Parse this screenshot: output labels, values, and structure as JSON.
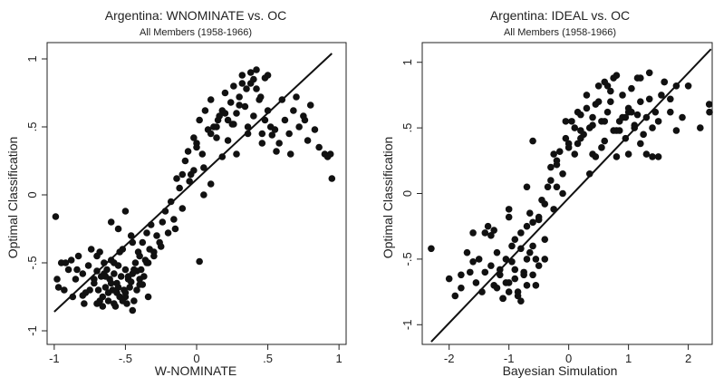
{
  "chart_data": [
    {
      "type": "scatter",
      "title": "Argentina: WNOMINATE vs. OC",
      "subtitle": "All Members (1958-1966)",
      "xlabel": "W-NOMINATE",
      "ylabel": "Optimal Classification",
      "xlim": [
        -1.05,
        1.05
      ],
      "ylim": [
        -1.1,
        1.12
      ],
      "xticks": [
        -1,
        -0.5,
        0,
        0.5,
        1
      ],
      "xtick_labels": [
        "-1",
        "-.5",
        "0",
        ".5",
        "1"
      ],
      "yticks": [
        -1,
        -0.5,
        0,
        0.5,
        1
      ],
      "ytick_labels": [
        "-1",
        "-.5",
        "0",
        ".5",
        "1"
      ],
      "grid": false,
      "fit_line": {
        "x": [
          -1.0,
          0.95
        ],
        "y": [
          -0.86,
          1.04
        ]
      },
      "series": [
        {
          "x": [
            -0.98,
            -0.95,
            -0.93,
            -0.9,
            -0.88,
            -0.85,
            -0.83,
            -0.8,
            -0.78,
            -0.76,
            -0.74,
            -0.72,
            -0.7,
            -0.69,
            -0.68,
            -0.67,
            -0.66,
            -0.65,
            -0.64,
            -0.63,
            -0.62,
            -0.61,
            -0.6,
            -0.59,
            -0.58,
            -0.57,
            -0.56,
            -0.55,
            -0.54,
            -0.53,
            -0.52,
            -0.51,
            -0.5,
            -0.49,
            -0.48,
            -0.47,
            -0.46,
            -0.45,
            -0.44,
            -0.43,
            -0.42,
            -0.41,
            -0.4,
            -0.39,
            -0.38,
            -0.37,
            -0.36,
            -0.35,
            -0.34,
            -0.33,
            -0.32,
            -0.3,
            -0.28,
            -0.26,
            -0.24,
            -0.22,
            -0.2,
            -0.18,
            -0.16,
            -0.14,
            -0.12,
            -0.1,
            -0.08,
            -0.06,
            -0.04,
            -0.02,
            0.0,
            0.02,
            0.04,
            0.06,
            0.08,
            0.1,
            0.12,
            0.14,
            0.16,
            0.18,
            0.2,
            0.22,
            0.24,
            0.26,
            0.28,
            0.3,
            0.32,
            0.34,
            0.36,
            0.38,
            0.4,
            0.42,
            0.44,
            0.46,
            0.48,
            0.5,
            0.52,
            0.55,
            0.58,
            0.6,
            0.62,
            0.65,
            0.68,
            0.7,
            0.72,
            0.75,
            0.78,
            0.8,
            0.83,
            0.86,
            0.9,
            0.92,
            0.94,
            0.95,
            -0.62,
            -0.58,
            -0.55,
            -0.5,
            -0.45,
            -0.7,
            -0.75,
            -0.8,
            -0.66,
            -0.6,
            -0.56,
            -0.52,
            -0.48,
            -0.44,
            -0.4,
            -0.35,
            -0.3,
            -0.25,
            -0.15,
            -0.05,
            0.05,
            0.1,
            0.15,
            0.2,
            0.25,
            0.3,
            0.35,
            0.4,
            0.45,
            0.5,
            0.05,
            0.1,
            0.18,
            0.22,
            0.28,
            0.32,
            0.38,
            0.42,
            0.48,
            0.53,
            -0.02,
            0.0,
            -0.1,
            0.14,
            0.26,
            0.36,
            0.46,
            0.56,
            0.66,
            0.76,
            -0.5,
            -0.45,
            -0.4,
            -0.55,
            -0.6,
            -0.65,
            -0.7,
            -0.72,
            -0.68,
            -0.64,
            -0.58,
            -0.54,
            -0.5,
            -0.46,
            -0.42,
            -0.38,
            -0.34,
            -0.99,
            -0.97,
            -0.92,
            -0.87,
            -0.84,
            -0.79,
            0.02
          ],
          "y": [
            -0.62,
            -0.5,
            -0.7,
            -0.55,
            -0.48,
            -0.62,
            -0.45,
            -0.58,
            -0.72,
            -0.52,
            -0.4,
            -0.65,
            -0.56,
            -0.7,
            -0.42,
            -0.6,
            -0.75,
            -0.5,
            -0.68,
            -0.55,
            -0.78,
            -0.62,
            -0.48,
            -0.7,
            -0.58,
            -0.82,
            -0.65,
            -0.52,
            -0.75,
            -0.6,
            -0.4,
            -0.7,
            -0.55,
            -0.8,
            -0.62,
            -0.68,
            -0.3,
            -0.58,
            -0.78,
            -0.5,
            -0.7,
            -0.42,
            -0.62,
            -0.55,
            -0.35,
            -0.6,
            -0.48,
            -0.28,
            -0.5,
            -0.4,
            -0.22,
            -0.45,
            -0.3,
            -0.35,
            -0.2,
            -0.12,
            -0.28,
            -0.05,
            -0.18,
            0.12,
            0.05,
            -0.1,
            0.25,
            0.32,
            0.15,
            0.42,
            0.38,
            0.55,
            0.3,
            0.62,
            0.48,
            0.7,
            0.5,
            0.42,
            0.58,
            0.62,
            0.75,
            0.55,
            0.68,
            0.8,
            0.6,
            0.72,
            0.88,
            0.65,
            0.5,
            0.82,
            0.58,
            0.92,
            0.7,
            0.45,
            0.55,
            0.62,
            0.5,
            0.48,
            0.38,
            0.7,
            0.55,
            0.45,
            0.62,
            0.72,
            0.5,
            0.58,
            0.4,
            0.66,
            0.48,
            0.35,
            0.3,
            0.28,
            0.3,
            0.12,
            -0.72,
            -0.8,
            -0.68,
            -0.75,
            -0.85,
            -0.8,
            -0.7,
            -0.74,
            -0.82,
            -0.65,
            -0.72,
            -0.78,
            -0.6,
            -0.55,
            -0.66,
            -0.5,
            -0.42,
            -0.38,
            -0.25,
            0.1,
            0.2,
            0.45,
            0.55,
            0.6,
            0.52,
            0.66,
            0.78,
            0.85,
            0.72,
            0.88,
            0.0,
            0.08,
            0.28,
            0.4,
            0.3,
            0.82,
            0.9,
            0.78,
            0.86,
            0.44,
            0.18,
            0.35,
            0.15,
            0.5,
            0.52,
            0.45,
            0.38,
            0.32,
            0.3,
            0.55,
            -0.12,
            -0.35,
            -0.45,
            -0.25,
            -0.2,
            -0.58,
            -0.45,
            -0.62,
            -0.78,
            -0.6,
            -0.5,
            -0.42,
            -0.72,
            -0.64,
            -0.56,
            -0.66,
            -0.75,
            -0.16,
            -0.68,
            -0.5,
            -0.75,
            -0.55,
            -0.8,
            -0.49
          ]
        }
      ]
    },
    {
      "type": "scatter",
      "title": "Argentina: IDEAL vs. OC",
      "subtitle": "All Members (1958-1966)",
      "xlabel": "Bayesian Simulation",
      "ylabel": "Optimal Classification",
      "xlim": [
        -2.45,
        2.4
      ],
      "ylim": [
        -1.15,
        1.15
      ],
      "xticks": [
        -2,
        -1,
        0,
        1,
        2
      ],
      "xtick_labels": [
        "-2",
        "-1",
        "0",
        "1",
        "2"
      ],
      "yticks": [
        -1,
        -0.5,
        0,
        0.5,
        1
      ],
      "ytick_labels": [
        "-1",
        "-.5",
        "0",
        ".5",
        "1"
      ],
      "grid": false,
      "fit_line": {
        "x": [
          -2.3,
          2.38
        ],
        "y": [
          -1.13,
          1.1
        ]
      },
      "series": [
        {
          "x": [
            -2.3,
            -2.0,
            -1.9,
            -1.8,
            -1.7,
            -1.65,
            -1.6,
            -1.55,
            -1.5,
            -1.45,
            -1.4,
            -1.35,
            -1.3,
            -1.25,
            -1.2,
            -1.15,
            -1.1,
            -1.05,
            -1.0,
            -0.95,
            -0.9,
            -0.85,
            -0.8,
            -0.75,
            -0.7,
            -0.65,
            -0.6,
            -0.55,
            -0.5,
            -0.45,
            -0.4,
            -0.35,
            -0.3,
            -0.25,
            -0.2,
            -0.15,
            -0.1,
            -0.05,
            0.0,
            0.05,
            0.1,
            0.15,
            0.2,
            0.25,
            0.3,
            0.35,
            0.4,
            0.45,
            0.5,
            0.55,
            0.6,
            0.65,
            0.7,
            0.75,
            0.8,
            0.85,
            0.9,
            0.95,
            1.0,
            1.05,
            1.1,
            1.15,
            1.2,
            1.25,
            1.3,
            1.35,
            1.4,
            1.45,
            1.5,
            1.55,
            1.6,
            1.7,
            1.8,
            1.9,
            2.0,
            2.2,
            2.35,
            2.38,
            -1.2,
            -1.1,
            -1.0,
            -0.9,
            -0.8,
            -0.7,
            -0.6,
            -0.5,
            -1.15,
            -1.05,
            -0.95,
            -0.85,
            -0.75,
            -0.65,
            -0.55,
            -1.25,
            -0.9,
            -0.8,
            -0.7,
            -1.0,
            -0.6,
            -0.4,
            -0.2,
            0.0,
            0.2,
            0.4,
            0.6,
            0.8,
            1.0,
            1.2,
            1.4,
            0.3,
            0.5,
            0.7,
            0.9,
            1.1,
            1.3,
            0.45,
            0.65,
            0.85,
            1.05,
            0.55,
            0.75,
            0.95,
            -1.4,
            -1.6,
            -1.8,
            -1.3,
            -1.0,
            -0.7,
            -0.5,
            -0.3,
            -0.1,
            0.1,
            -0.4,
            -0.6,
            -0.2,
            0.6,
            0.8,
            1.0,
            1.2,
            1.5,
            1.7,
            0.2,
            0.4,
            0.35,
            0.15,
            -0.05,
            -0.25,
            1.6,
            1.8,
            1.35,
            1.15
          ],
          "y": [
            -0.42,
            -0.65,
            -0.78,
            -0.72,
            -0.45,
            -0.6,
            -0.3,
            -0.68,
            -0.5,
            -0.75,
            -0.6,
            -0.25,
            -0.55,
            -0.7,
            -0.45,
            -0.62,
            -0.8,
            -0.5,
            -0.68,
            -0.4,
            -0.58,
            -0.75,
            -0.3,
            -0.62,
            -0.5,
            -0.15,
            -0.4,
            -0.7,
            -0.2,
            -0.05,
            -0.35,
            0.05,
            0.1,
            -0.12,
            0.25,
            0.32,
            0.0,
            0.42,
            0.38,
            0.55,
            0.5,
            0.62,
            0.6,
            0.45,
            0.75,
            0.5,
            0.58,
            0.68,
            0.82,
            0.55,
            0.4,
            0.62,
            0.7,
            0.48,
            0.9,
            0.55,
            0.75,
            0.42,
            0.65,
            0.8,
            0.5,
            0.6,
            0.88,
            0.45,
            0.58,
            0.72,
            0.5,
            0.62,
            0.55,
            0.75,
            0.85,
            0.62,
            0.48,
            0.58,
            0.82,
            0.5,
            0.68,
            0.62,
            -0.72,
            -0.8,
            -0.75,
            -0.65,
            -0.82,
            -0.7,
            -0.62,
            -0.55,
            -0.58,
            -0.68,
            -0.52,
            -0.78,
            -0.6,
            -0.45,
            -0.5,
            -0.28,
            -0.35,
            -0.42,
            -0.25,
            -0.12,
            -0.22,
            -0.08,
            0.05,
            0.35,
            0.42,
            0.3,
            0.55,
            0.48,
            0.62,
            0.38,
            0.28,
            0.65,
            0.7,
            0.78,
            0.58,
            0.52,
            0.3,
            0.28,
            0.82,
            0.48,
            0.62,
            0.35,
            0.88,
            0.58,
            -0.3,
            -0.52,
            -0.62,
            -0.32,
            -0.18,
            0.05,
            -0.18,
            0.2,
            0.15,
            0.3,
            -0.5,
            0.4,
            0.22,
            0.85,
            0.28,
            0.3,
            0.7,
            0.28,
            0.72,
            0.48,
            0.52,
            0.15,
            0.38,
            0.55,
            0.3,
            0.85,
            0.82,
            0.92,
            0.88
          ]
        }
      ]
    }
  ]
}
